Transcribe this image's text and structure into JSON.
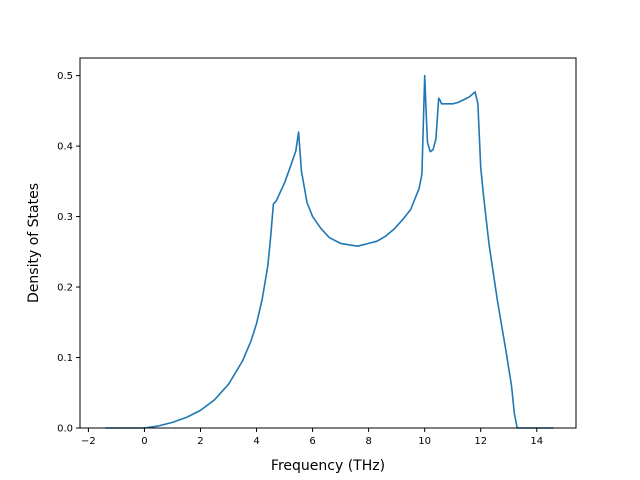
{
  "chart_data": {
    "type": "line",
    "title": "",
    "xlabel": "Frequency (THz)",
    "ylabel": "Density of States",
    "xlim": [
      -2.3,
      15.4
    ],
    "ylim": [
      0.0,
      0.525
    ],
    "xticks": [
      -2,
      0,
      2,
      4,
      6,
      8,
      10,
      12,
      14
    ],
    "xtick_labels": [
      "−2",
      "0",
      "2",
      "4",
      "6",
      "8",
      "10",
      "12",
      "14"
    ],
    "yticks": [
      0.0,
      0.1,
      0.2,
      0.3,
      0.4,
      0.5
    ],
    "ytick_labels": [
      "0.0",
      "0.1",
      "0.2",
      "0.3",
      "0.4",
      "0.5"
    ],
    "grid": false,
    "series": [
      {
        "color": "#1f77b4",
        "x": [
          -1.4,
          0.0,
          0.5,
          1.0,
          1.5,
          2.0,
          2.5,
          3.0,
          3.5,
          3.8,
          4.0,
          4.2,
          4.4,
          4.5,
          4.6,
          4.7,
          5.0,
          5.2,
          5.4,
          5.5,
          5.6,
          5.8,
          6.0,
          6.3,
          6.6,
          7.0,
          7.3,
          7.6,
          7.8,
          8.0,
          8.3,
          8.6,
          8.9,
          9.2,
          9.5,
          9.8,
          9.9,
          10.0,
          10.05,
          10.1,
          10.2,
          10.3,
          10.4,
          10.5,
          10.55,
          10.6,
          10.8,
          11.0,
          11.2,
          11.4,
          11.6,
          11.8,
          11.9,
          12.0,
          12.1,
          12.3,
          12.6,
          12.9,
          13.1,
          13.2,
          13.3,
          13.5,
          14.6
        ],
        "y": [
          0.0,
          0.0,
          0.003,
          0.008,
          0.015,
          0.025,
          0.04,
          0.062,
          0.095,
          0.123,
          0.148,
          0.182,
          0.23,
          0.27,
          0.318,
          0.322,
          0.348,
          0.37,
          0.393,
          0.42,
          0.365,
          0.32,
          0.3,
          0.283,
          0.27,
          0.262,
          0.26,
          0.258,
          0.26,
          0.262,
          0.265,
          0.272,
          0.282,
          0.295,
          0.31,
          0.34,
          0.36,
          0.5,
          0.45,
          0.405,
          0.392,
          0.395,
          0.41,
          0.468,
          0.465,
          0.46,
          0.46,
          0.46,
          0.462,
          0.466,
          0.47,
          0.477,
          0.46,
          0.37,
          0.33,
          0.26,
          0.18,
          0.11,
          0.06,
          0.02,
          0.0,
          0.0,
          0.0
        ]
      }
    ]
  }
}
